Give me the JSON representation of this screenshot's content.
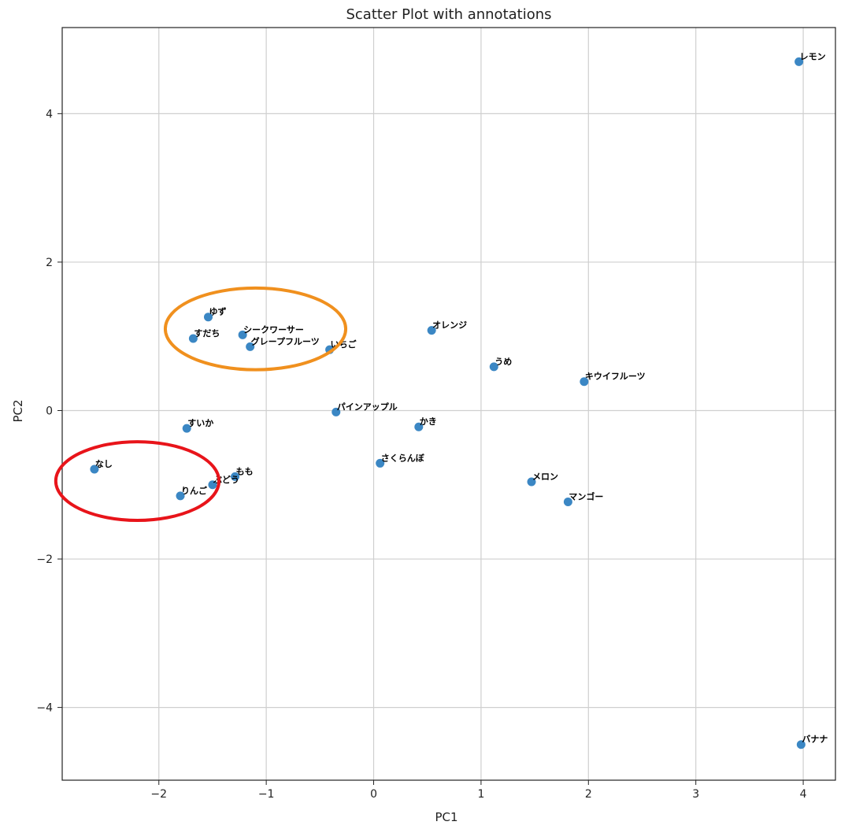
{
  "chart_data": {
    "type": "scatter",
    "title": "Scatter Plot with annotations",
    "xlabel": "PC1",
    "ylabel": "PC2",
    "xlim": [
      -2.9,
      4.3
    ],
    "ylim": [
      -4.98,
      5.16
    ],
    "xticks": [
      -2,
      -1,
      0,
      1,
      2,
      3,
      4
    ],
    "xtick_labels": [
      "−2",
      "−1",
      "0",
      "1",
      "2",
      "3",
      "4"
    ],
    "yticks": [
      -4,
      -2,
      0,
      2,
      4
    ],
    "ytick_labels": [
      "−4",
      "−2",
      "0",
      "2",
      "4"
    ],
    "grid": true,
    "point_color": "#3b87c4",
    "points": [
      {
        "label": "レモン",
        "x": 3.96,
        "y": 4.7
      },
      {
        "label": "ゆず",
        "x": -1.54,
        "y": 1.26
      },
      {
        "label": "すだち",
        "x": -1.68,
        "y": 0.97
      },
      {
        "label": "シークワーサー",
        "x": -1.22,
        "y": 1.02
      },
      {
        "label": "グレープフルーツ",
        "x": -1.15,
        "y": 0.86
      },
      {
        "label": "いちご",
        "x": -0.41,
        "y": 0.82
      },
      {
        "label": "オレンジ",
        "x": 0.54,
        "y": 1.08
      },
      {
        "label": "うめ",
        "x": 1.12,
        "y": 0.59
      },
      {
        "label": "キウイフルーツ",
        "x": 1.96,
        "y": 0.39
      },
      {
        "label": "パインアップル",
        "x": -0.35,
        "y": -0.02
      },
      {
        "label": "すいか",
        "x": -1.74,
        "y": -0.24
      },
      {
        "label": "かき",
        "x": 0.42,
        "y": -0.22
      },
      {
        "label": "なし",
        "x": -2.6,
        "y": -0.79
      },
      {
        "label": "さくらんぼ",
        "x": 0.06,
        "y": -0.71
      },
      {
        "label": "もも",
        "x": -1.29,
        "y": -0.89
      },
      {
        "label": "ぶどう",
        "x": -1.5,
        "y": -1.0
      },
      {
        "label": "りんご",
        "x": -1.8,
        "y": -1.15
      },
      {
        "label": "メロン",
        "x": 1.47,
        "y": -0.96
      },
      {
        "label": "マンゴー",
        "x": 1.81,
        "y": -1.23
      },
      {
        "label": "バナナ",
        "x": 3.98,
        "y": -4.5
      }
    ],
    "annotations": [
      {
        "shape": "ellipse",
        "color": "#f0901e",
        "cx": -1.1,
        "cy": 1.1,
        "rx": 0.84,
        "ry": 0.55
      },
      {
        "shape": "ellipse",
        "color": "#e8141a",
        "cx": -2.2,
        "cy": -0.95,
        "rx": 0.76,
        "ry": 0.53
      }
    ]
  }
}
